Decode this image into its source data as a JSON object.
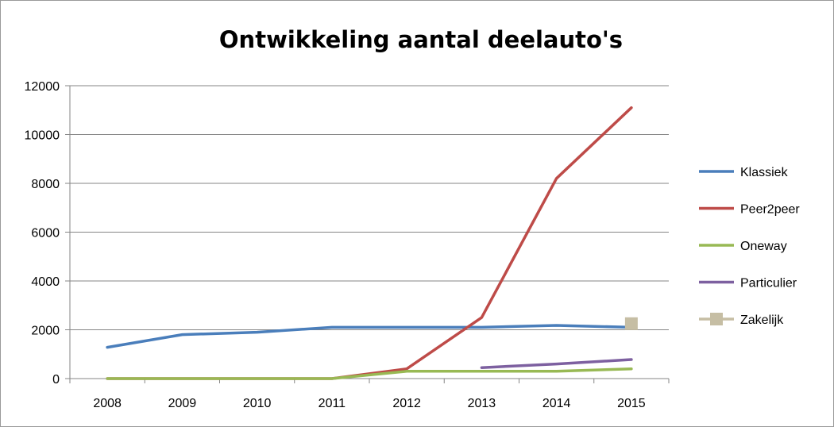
{
  "chart_data": {
    "type": "line",
    "title": "Ontwikkeling aantal deelauto's",
    "xlabel": "",
    "ylabel": "",
    "categories": [
      "2008",
      "2009",
      "2010",
      "2011",
      "2012",
      "2013",
      "2014",
      "2015"
    ],
    "ylim": [
      0,
      12000
    ],
    "yticks": [
      0,
      2000,
      4000,
      6000,
      8000,
      10000,
      12000
    ],
    "grid": true,
    "legend_position": "right",
    "series": [
      {
        "name": "Klassiek",
        "color": "#4a7ebb",
        "marker": "none",
        "values": [
          1280,
          1800,
          1900,
          2100,
          2100,
          2100,
          2180,
          2100
        ]
      },
      {
        "name": "Peer2peer",
        "color": "#be4b48",
        "marker": "none",
        "values": [
          0,
          0,
          0,
          0,
          400,
          2500,
          8200,
          11100
        ]
      },
      {
        "name": "Oneway",
        "color": "#98b954",
        "marker": "none",
        "values": [
          0,
          0,
          0,
          0,
          300,
          300,
          300,
          400
        ]
      },
      {
        "name": "Particulier",
        "color": "#7d60a0",
        "marker": "none",
        "values": [
          null,
          null,
          null,
          null,
          null,
          450,
          600,
          780
        ]
      },
      {
        "name": "Zakelijk",
        "color": "#c6bea4",
        "marker": "square",
        "values": [
          null,
          null,
          null,
          null,
          null,
          null,
          null,
          2250
        ]
      }
    ]
  }
}
